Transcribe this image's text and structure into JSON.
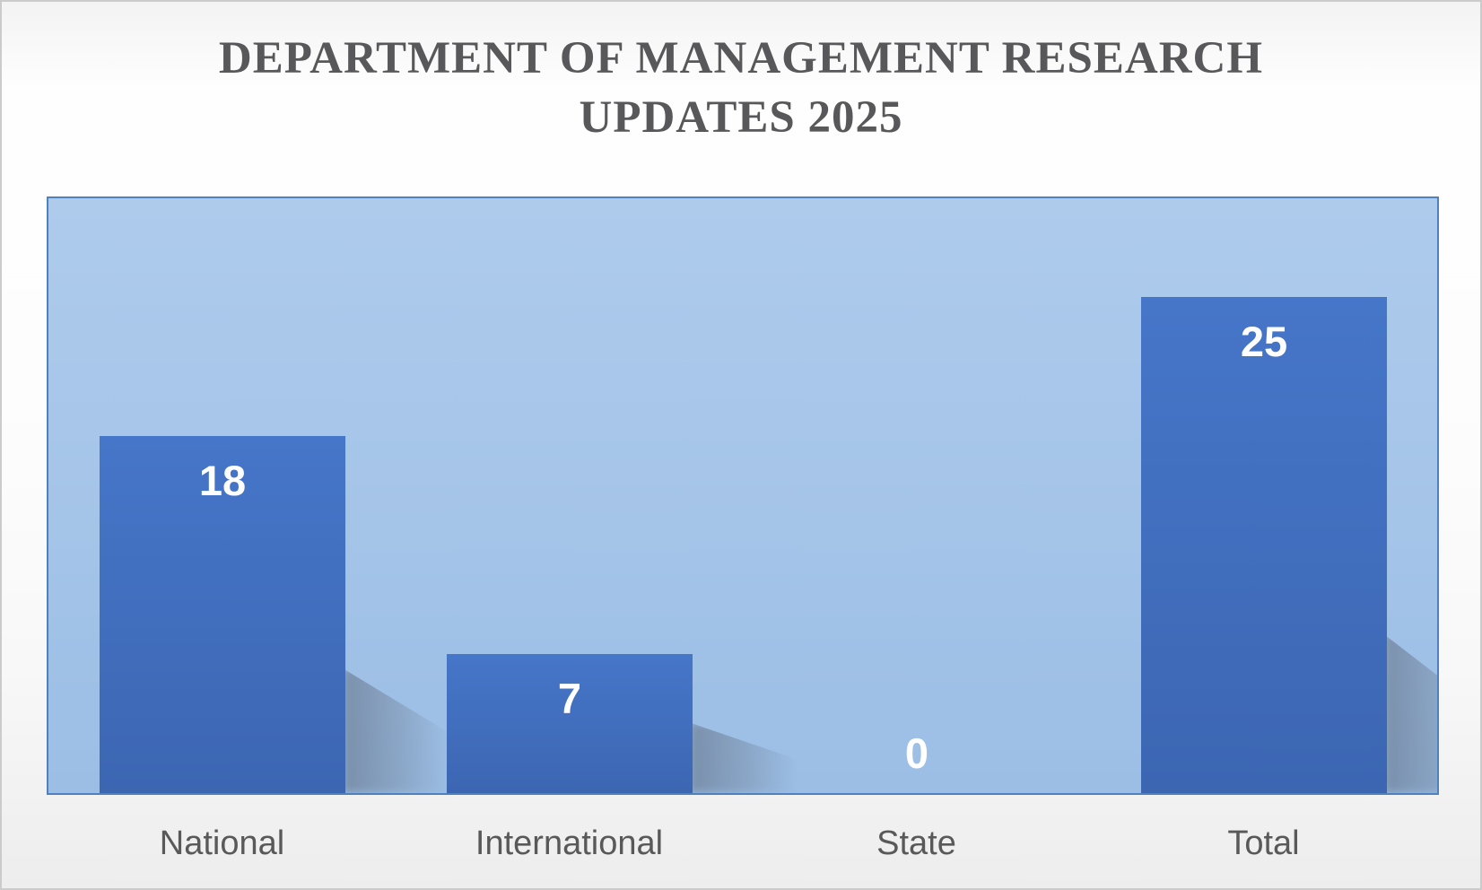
{
  "title": {
    "full": "DEPARTMENT OF MANAGEMENT RESEARCH UPDATES 2025",
    "line1": "DEPARTMENT OF MANAGEMENT RESEARCH",
    "line2": "UPDATES 2025"
  },
  "chart_data": {
    "type": "bar",
    "title": "DEPARTMENT OF MANAGEMENT RESEARCH UPDATES 2025",
    "categories": [
      "National",
      "International",
      "State",
      "Total"
    ],
    "values": [
      18,
      7,
      0,
      25
    ],
    "data_labels": [
      "18",
      "7",
      "0",
      "25"
    ],
    "xlabel": "",
    "ylabel": "",
    "ylim": [
      0,
      30
    ],
    "grid": false,
    "legend": "none",
    "data_label_position": "inside-end",
    "bar_effects": "perspective shadow lower-right",
    "colors": {
      "bar_fill_top": "#4676C9",
      "bar_fill_bottom": "#3C66B2",
      "plot_bg_top": "#AECBEC",
      "plot_bg_bottom": "#9CBEE5",
      "plot_border": "#4E81BD",
      "data_label": "#FFFFFF",
      "category_label": "#595959",
      "title_text": "#58585A",
      "page_border": "#CBCBCB"
    }
  }
}
